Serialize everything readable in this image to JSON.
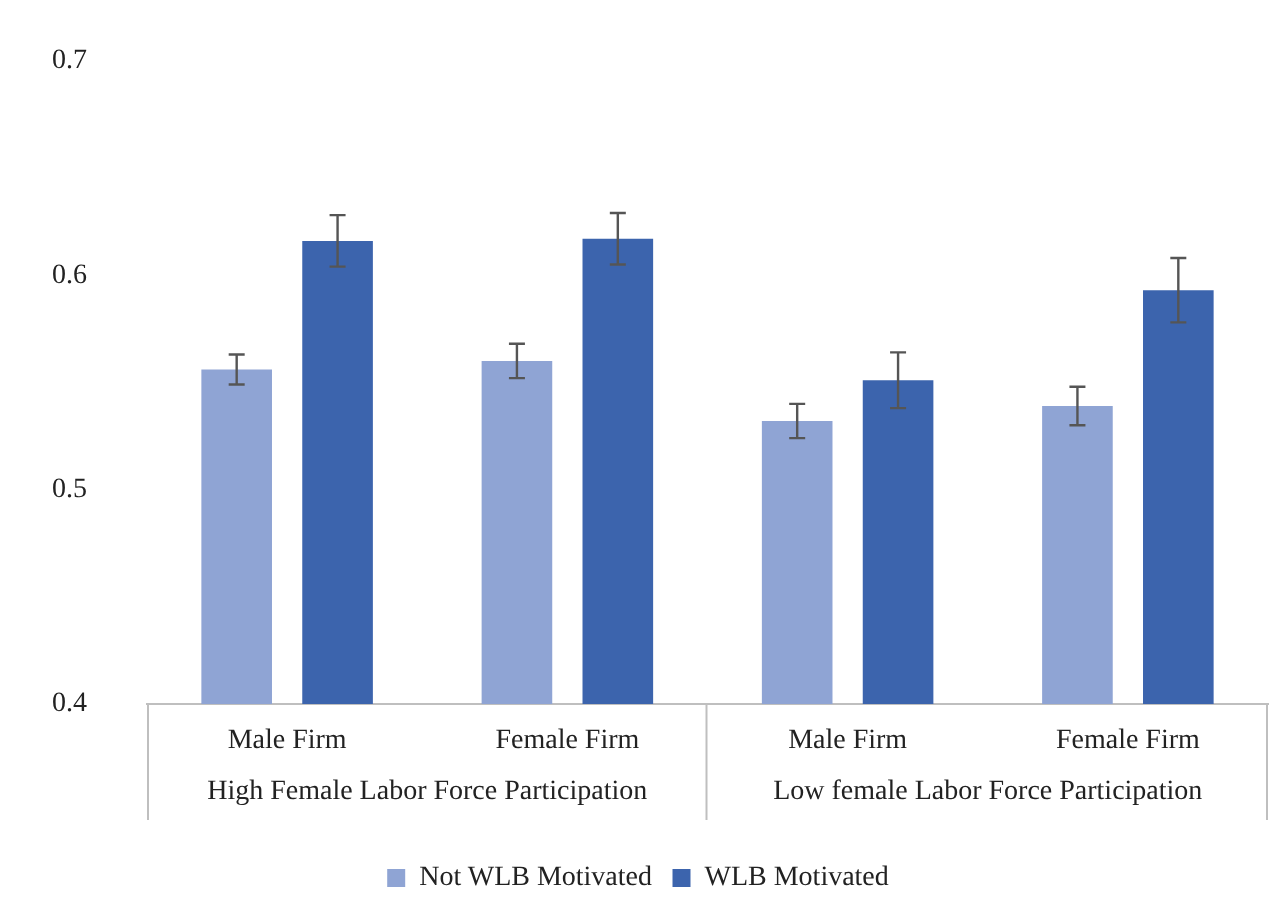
{
  "chart_data": {
    "type": "bar",
    "categories": [
      "Male Firm",
      "Female Firm",
      "Male Firm",
      "Female Firm"
    ],
    "series": [
      {
        "name": "Not WLB Motivated",
        "color": "#8fa4d4",
        "values": [
          0.556,
          0.56,
          0.532,
          0.539
        ],
        "errors": [
          0.007,
          0.008,
          0.008,
          0.009
        ]
      },
      {
        "name": "WLB Motivated",
        "color": "#3c64ad",
        "values": [
          0.616,
          0.617,
          0.551,
          0.593
        ],
        "errors": [
          0.012,
          0.012,
          0.013,
          0.015
        ]
      }
    ],
    "ylim": [
      0.4,
      0.7
    ],
    "yticks": [
      0.4,
      0.5,
      0.6,
      0.7
    ],
    "grid": false,
    "legend": "bottom",
    "annotations": [
      "High Female Labor Force Participation",
      "Low female Labor Force Participation"
    ]
  }
}
